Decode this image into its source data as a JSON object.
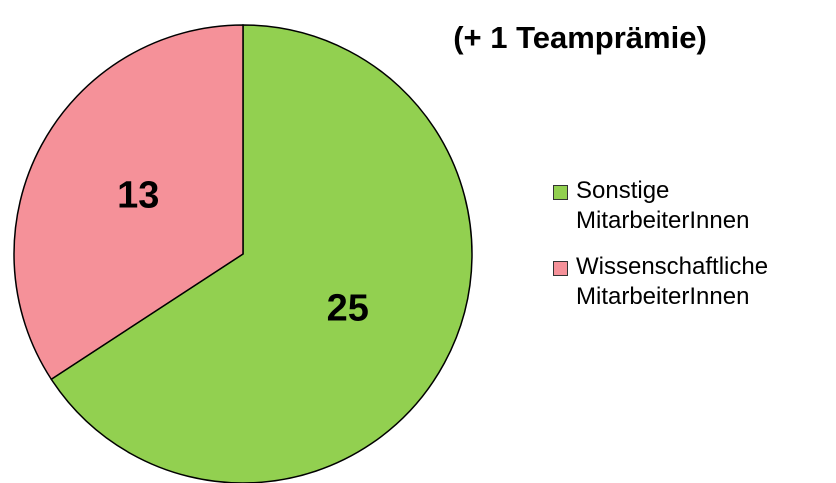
{
  "chart_data": {
    "type": "pie",
    "title": "(+ 1 Teamprämie)",
    "categories": [
      "Sonstige MitarbeiterInnen",
      "Wissenschaftliche MitarbeiterInnen"
    ],
    "values": [
      25,
      13
    ],
    "colors": [
      "#92d050",
      "#f59199"
    ],
    "legend": "right"
  }
}
